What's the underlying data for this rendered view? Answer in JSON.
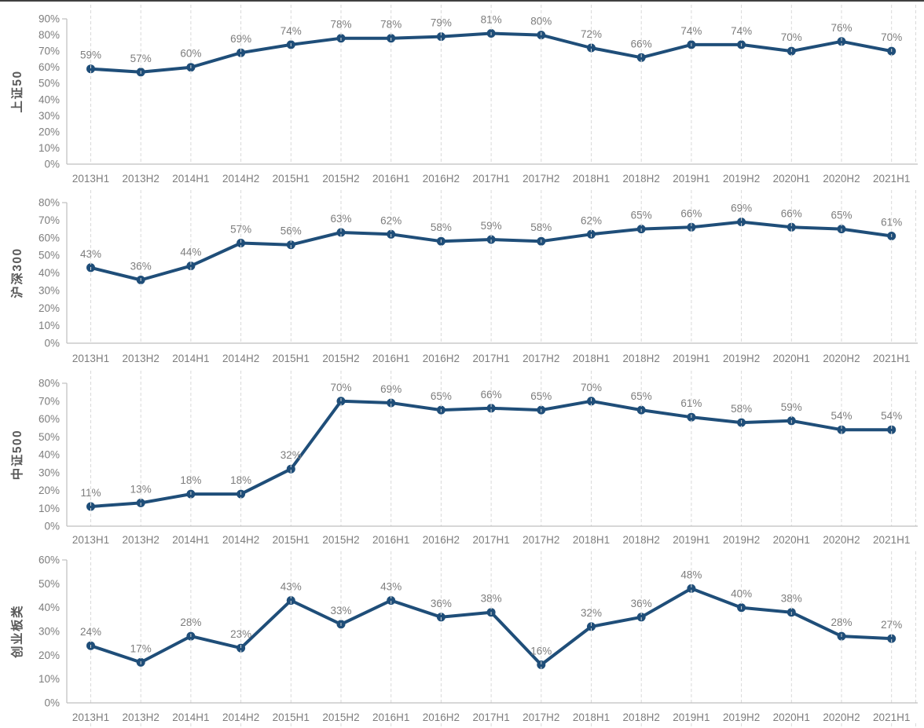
{
  "figure": {
    "description": "Four stacked line charts of semi-annual percentages by index",
    "accent_color": "#1F4E79",
    "gridline_color": "#D9D9D9",
    "axis_line_color": "#BFBFBF",
    "label_color": "#7D7D7D",
    "axis_title_color": "#595959",
    "top_border_color": "#404040"
  },
  "chart_data": [
    {
      "type": "line",
      "title": "上证50",
      "ylabel": "上证50",
      "xlabel": "",
      "categories": [
        "2013H1",
        "2013H2",
        "2014H1",
        "2014H2",
        "2015H1",
        "2015H2",
        "2016H1",
        "2016H2",
        "2017H1",
        "2017H2",
        "2018H1",
        "2018H2",
        "2019H1",
        "2019H2",
        "2020H1",
        "2020H2",
        "2021H1"
      ],
      "values": [
        59,
        57,
        60,
        69,
        74,
        78,
        78,
        79,
        81,
        80,
        72,
        66,
        74,
        74,
        70,
        76,
        70
      ],
      "data_labels": [
        "59%",
        "57%",
        "60%",
        "69%",
        "74%",
        "78%",
        "78%",
        "79%",
        "81%",
        "80%",
        "72%",
        "66%",
        "74%",
        "74%",
        "70%",
        "76%",
        "70%"
      ],
      "ylim": [
        0,
        90
      ],
      "ytick_labels": [
        "0%",
        "10%",
        "20%",
        "30%",
        "40%",
        "50%",
        "60%",
        "70%",
        "80%",
        "90%"
      ],
      "grid": "vertical-dashed",
      "legend": "none"
    },
    {
      "type": "line",
      "title": "沪深300",
      "ylabel": "沪深300",
      "xlabel": "",
      "categories": [
        "2013H1",
        "2013H2",
        "2014H1",
        "2014H2",
        "2015H1",
        "2015H2",
        "2016H1",
        "2016H2",
        "2017H1",
        "2017H2",
        "2018H1",
        "2018H2",
        "2019H1",
        "2019H2",
        "2020H1",
        "2020H2",
        "2021H1"
      ],
      "values": [
        43,
        36,
        44,
        57,
        56,
        63,
        62,
        58,
        59,
        58,
        62,
        65,
        66,
        69,
        66,
        65,
        61
      ],
      "data_labels": [
        "43%",
        "36%",
        "44%",
        "57%",
        "56%",
        "63%",
        "62%",
        "58%",
        "59%",
        "58%",
        "62%",
        "65%",
        "66%",
        "69%",
        "66%",
        "65%",
        "61%"
      ],
      "ylim": [
        0,
        80
      ],
      "ytick_labels": [
        "0%",
        "10%",
        "20%",
        "30%",
        "40%",
        "50%",
        "60%",
        "70%",
        "80%"
      ],
      "grid": "vertical-dashed",
      "legend": "none"
    },
    {
      "type": "line",
      "title": "中证500",
      "ylabel": "中证500",
      "xlabel": "",
      "categories": [
        "2013H1",
        "2013H2",
        "2014H1",
        "2014H2",
        "2015H1",
        "2015H2",
        "2016H1",
        "2016H2",
        "2017H1",
        "2017H2",
        "2018H1",
        "2018H2",
        "2019H1",
        "2019H2",
        "2020H1",
        "2020H2",
        "2021H1"
      ],
      "values": [
        11,
        13,
        18,
        18,
        32,
        70,
        69,
        65,
        66,
        65,
        70,
        65,
        61,
        58,
        59,
        54,
        54
      ],
      "data_labels": [
        "11%",
        "13%",
        "18%",
        "18%",
        "32%",
        "70%",
        "69%",
        "65%",
        "66%",
        "65%",
        "70%",
        "65%",
        "61%",
        "58%",
        "59%",
        "54%",
        "54%"
      ],
      "ylim": [
        0,
        80
      ],
      "ytick_labels": [
        "0%",
        "10%",
        "20%",
        "30%",
        "40%",
        "50%",
        "60%",
        "70%",
        "80%"
      ],
      "grid": "vertical-dashed",
      "legend": "none"
    },
    {
      "type": "line",
      "title": "创业板类",
      "ylabel": "创业板类",
      "xlabel": "",
      "categories": [
        "2013H1",
        "2013H2",
        "2014H1",
        "2014H2",
        "2015H1",
        "2015H2",
        "2016H1",
        "2016H2",
        "2017H1",
        "2017H2",
        "2018H1",
        "2018H2",
        "2019H1",
        "2019H2",
        "2020H1",
        "2020H2",
        "2021H1"
      ],
      "values": [
        24,
        17,
        28,
        23,
        43,
        33,
        43,
        36,
        38,
        16,
        32,
        36,
        48,
        40,
        38,
        28,
        27
      ],
      "data_labels": [
        "24%",
        "17%",
        "28%",
        "23%",
        "43%",
        "33%",
        "43%",
        "36%",
        "38%",
        "16%",
        "32%",
        "36%",
        "48%",
        "40%",
        "38%",
        "28%",
        "27%"
      ],
      "ylim": [
        0,
        60
      ],
      "ytick_labels": [
        "0%",
        "10%",
        "20%",
        "30%",
        "40%",
        "50%",
        "60%"
      ],
      "grid": "vertical-dashed",
      "legend": "none"
    }
  ]
}
